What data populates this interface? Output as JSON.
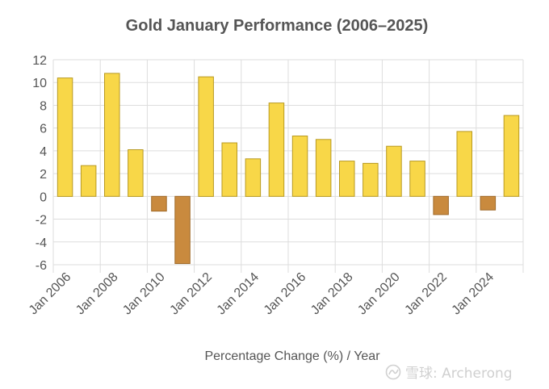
{
  "chart_data": {
    "type": "bar",
    "title": "Gold January Performance (2006–2025)",
    "xlabel": "Percentage Change (%) / Year",
    "ylabel": "",
    "ylim": [
      -6,
      12
    ],
    "yticks": [
      12,
      10,
      8,
      6,
      4,
      2,
      0,
      -2,
      -4,
      -6
    ],
    "ytick_labels": [
      "12",
      "10",
      "8",
      "6",
      "4",
      "2",
      "0",
      "-2",
      "-4",
      "-6"
    ],
    "grid": true,
    "categories": [
      "2006",
      "2007",
      "2008",
      "2009",
      "2010",
      "2011",
      "2012",
      "2013",
      "2014",
      "2015",
      "2016",
      "2017",
      "2018",
      "2019",
      "2020",
      "2021",
      "2022",
      "2023",
      "2024",
      "2025"
    ],
    "values": [
      10.4,
      2.7,
      10.8,
      4.1,
      -1.3,
      -5.9,
      10.5,
      4.7,
      3.3,
      8.2,
      5.3,
      5.0,
      3.1,
      2.9,
      4.4,
      3.1,
      -1.6,
      5.7,
      -1.2,
      7.1
    ],
    "xtick_labels": [
      "Jan 2006",
      "Jan 2008",
      "Jan 2010",
      "Jan 2012",
      "Jan 2014",
      "Jan 2016",
      "Jan 2018",
      "Jan 2020",
      "Jan 2022",
      "Jan 2024"
    ],
    "colors": {
      "positive_fill": "#f8d748",
      "positive_stroke": "#b89a22",
      "negative_fill": "#c98a3e",
      "negative_stroke": "#a06a28",
      "grid": "#dddddd",
      "text": "#555555"
    }
  },
  "watermark": {
    "icon": "snowball-logo-icon",
    "text": "雪球: Archerong"
  }
}
